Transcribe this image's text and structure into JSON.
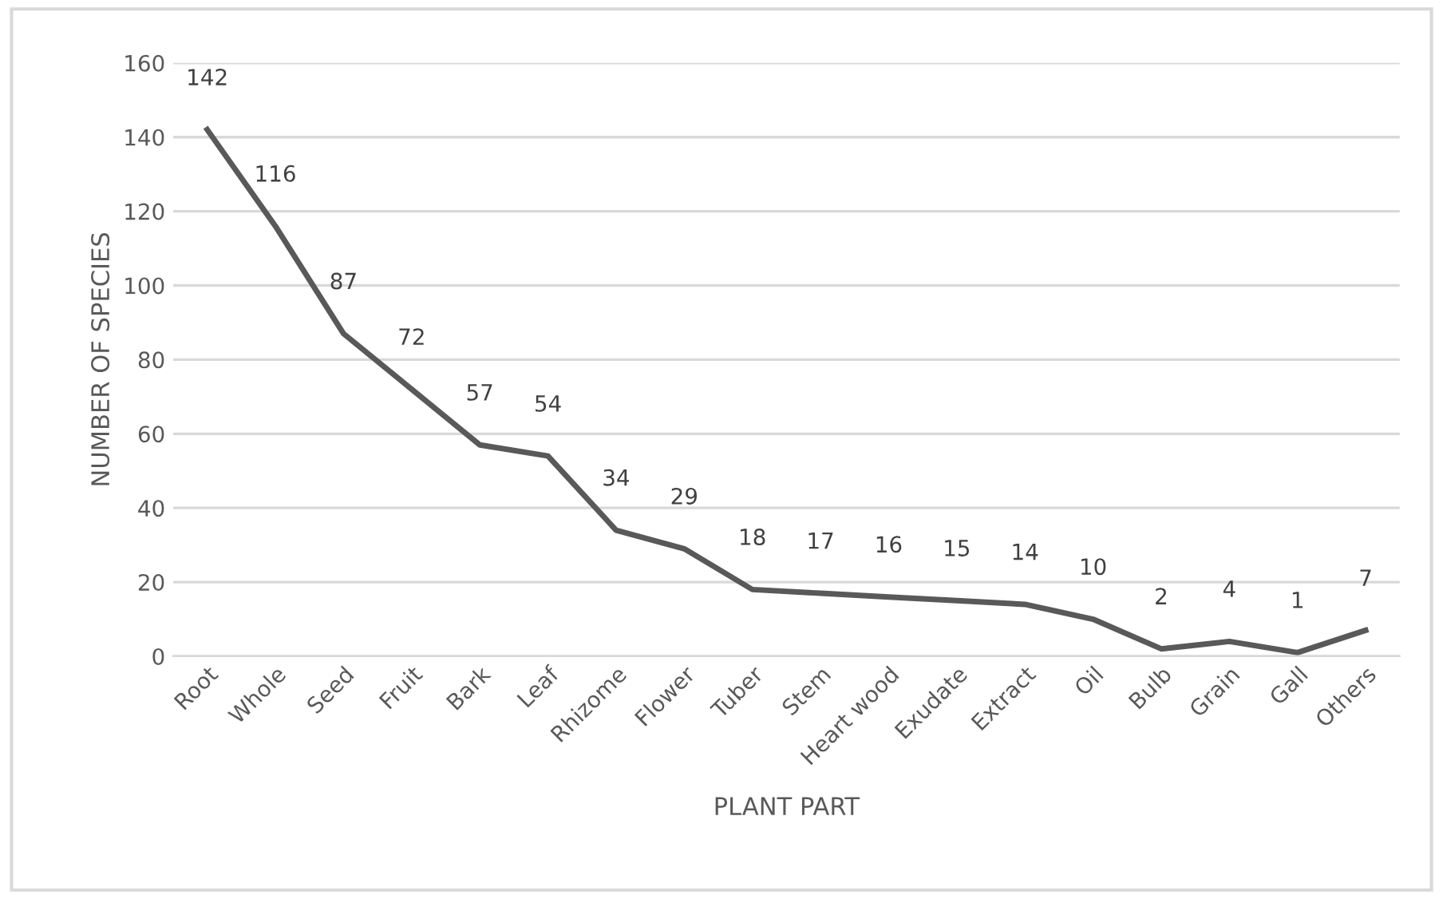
{
  "chart_data": {
    "type": "line",
    "xlabel": "PLANT PART",
    "ylabel": "NUMBER OF SPECIES",
    "categories": [
      "Root",
      "Whole",
      "Seed",
      "Fruit",
      "Bark",
      "Leaf",
      "Rhizome",
      "Flower",
      "Tuber",
      "Stem",
      "Heart wood",
      "Exudate",
      "Extract",
      "Oil",
      "Bulb",
      "Grain",
      "Gall",
      "Others"
    ],
    "series": [
      {
        "color": "#595959",
        "values": [
          142,
          116,
          87,
          72,
          57,
          54,
          34,
          29,
          18,
          17,
          16,
          15,
          14,
          10,
          2,
          4,
          1,
          7
        ]
      }
    ],
    "ylim": [
      0,
      160
    ],
    "yticks": [
      0,
      20,
      40,
      60,
      80,
      100,
      120,
      140,
      160
    ],
    "grid": "y",
    "data_labels": true,
    "marker": "none",
    "line_style": "solid",
    "legend": false
  }
}
